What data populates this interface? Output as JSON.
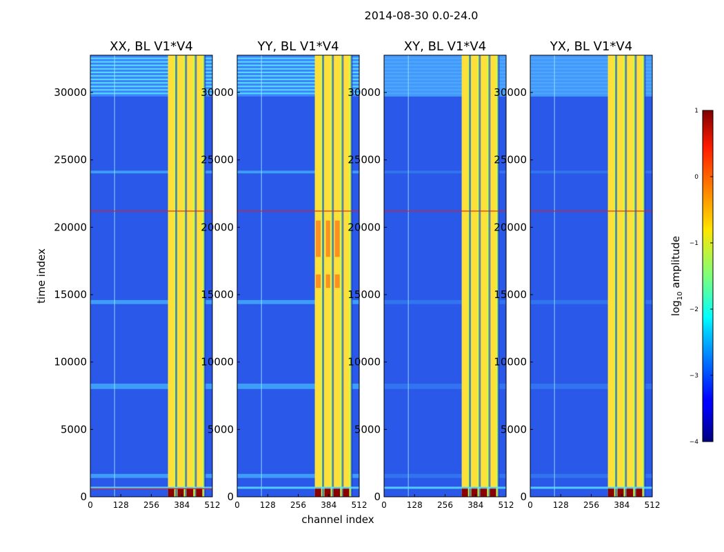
{
  "figure": {
    "suptitle": "2014-08-30 0.0-24.0",
    "xlabel": "channel index",
    "ylabel": "time index"
  },
  "colors": {
    "low": "#0c1cb8",
    "mid": "#ffe600",
    "high": "#8b0000"
  },
  "chart_data": [
    {
      "type": "heatmap",
      "title": "XX, BL V1*V4",
      "xlabel": "channel index",
      "ylabel": "time index",
      "xlim": [
        0,
        512
      ],
      "ylim": [
        0,
        32768
      ],
      "xticks": [
        0,
        128,
        256,
        384,
        512
      ],
      "yticks": [
        0,
        5000,
        10000,
        15000,
        20000,
        25000,
        30000
      ],
      "bright_channel_band": [
        326,
        480
      ],
      "flagged_times": [
        600,
        21200
      ],
      "strong_event_times": [
        0,
        700
      ]
    },
    {
      "type": "heatmap",
      "title": "YY, BL V1*V4",
      "xlim": [
        0,
        512
      ],
      "ylim": [
        0,
        32768
      ],
      "xticks": [
        0,
        128,
        256,
        384,
        512
      ],
      "yticks": [
        0,
        5000,
        10000,
        15000,
        20000,
        25000,
        30000
      ],
      "bright_channel_band": [
        326,
        480
      ],
      "flagged_times": [
        21200
      ],
      "strong_event_times": [
        0,
        700
      ]
    },
    {
      "type": "heatmap",
      "title": "XY, BL V1*V4",
      "xlim": [
        0,
        512
      ],
      "ylim": [
        0,
        32768
      ],
      "xticks": [
        0,
        128,
        256,
        384,
        512
      ],
      "yticks": [
        0,
        5000,
        10000,
        15000,
        20000,
        25000,
        30000
      ],
      "bright_channel_band": [
        326,
        480
      ],
      "flagged_times": [
        21200
      ],
      "strong_event_times": [
        0,
        700
      ]
    },
    {
      "type": "heatmap",
      "title": "YX, BL V1*V4",
      "xlim": [
        0,
        512
      ],
      "ylim": [
        0,
        32768
      ],
      "xticks": [
        0,
        128,
        256,
        384,
        512
      ],
      "yticks": [
        0,
        5000,
        10000,
        15000,
        20000,
        25000,
        30000
      ],
      "bright_channel_band": [
        326,
        480
      ],
      "flagged_times": [
        21200
      ],
      "strong_event_times": [
        0,
        700
      ]
    }
  ],
  "colorbar": {
    "label": "log",
    "label_sub": "10",
    "label_rest": " amplitude",
    "range": [
      -4,
      1
    ],
    "ticks": [
      1,
      0,
      -1,
      -2,
      -3,
      -4
    ],
    "tick_labels": [
      "1",
      "0",
      "−1",
      "−2",
      "−3",
      "−4"
    ]
  }
}
